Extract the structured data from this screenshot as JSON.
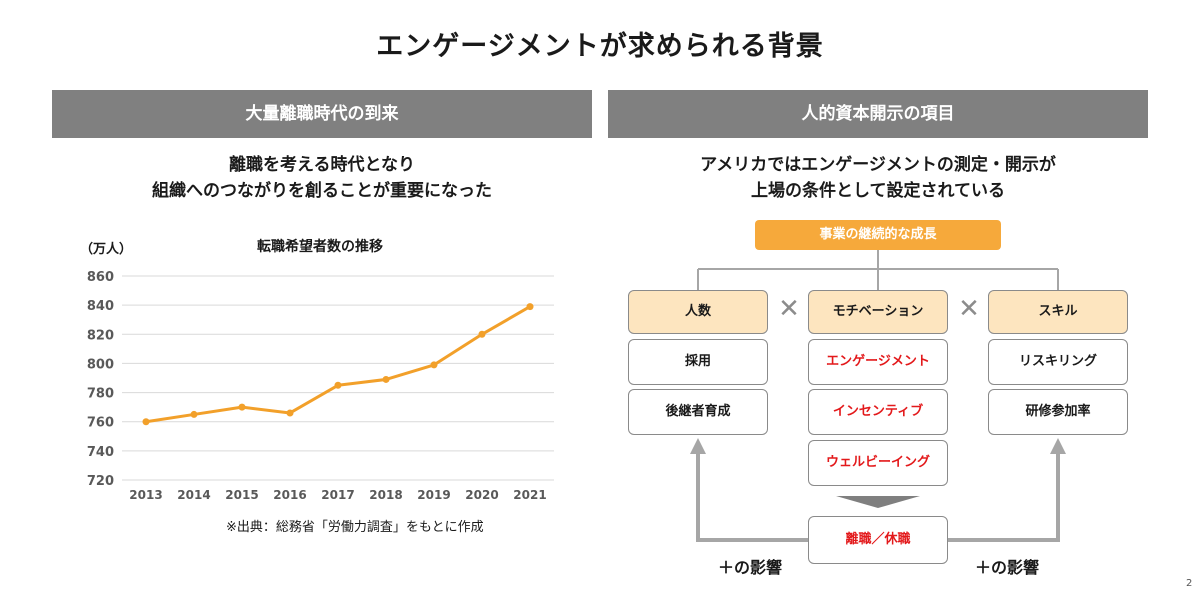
{
  "page": {
    "title": "エンゲージメントが求められる背景",
    "page_number": "2"
  },
  "left": {
    "header": "大量離職時代の到来",
    "lead_lines": [
      "離職を考える時代となり",
      "組織へのつながりを創ることが重要になった"
    ],
    "source": "※出典：総務省「労働力調査」をもとに作成"
  },
  "chart_data": {
    "type": "line",
    "title": "転職希望者数の推移",
    "ylabel": "（万人）",
    "xlabel": "",
    "categories": [
      "2013",
      "2014",
      "2015",
      "2016",
      "2017",
      "2018",
      "2019",
      "2020",
      "2021"
    ],
    "values": [
      760,
      765,
      770,
      766,
      785,
      789,
      799,
      820,
      839
    ],
    "ylim": [
      720,
      860
    ],
    "yticks": [
      860,
      840,
      820,
      800,
      780,
      760,
      740,
      720
    ],
    "grid": true,
    "legend": "none",
    "color": "#f2a02a"
  },
  "right": {
    "header": "人的資本開示の項目",
    "lead_lines": [
      "アメリカではエンゲージメントの測定・開示が",
      "上場の条件として設定されている"
    ],
    "goal": "事業の継続的な成長",
    "times_symbol": "✕",
    "columns": [
      {
        "head": "人数",
        "items": [
          "採用",
          "後継者育成"
        ]
      },
      {
        "head": "モチベーション",
        "items": [
          "エンゲージメント",
          "インセンティブ",
          "ウェルビーイング"
        ]
      },
      {
        "head": "スキル",
        "items": [
          "リスキリング",
          "研修参加率"
        ]
      }
    ],
    "outcome": "離職／休職",
    "effect_left": "＋の影響",
    "effect_right": "＋の影響",
    "colors": {
      "head_fill": "#fde5bf",
      "goal_fill": "#f6a93b",
      "red_text": "#e3191b",
      "connector": "#a6a6a6"
    }
  }
}
